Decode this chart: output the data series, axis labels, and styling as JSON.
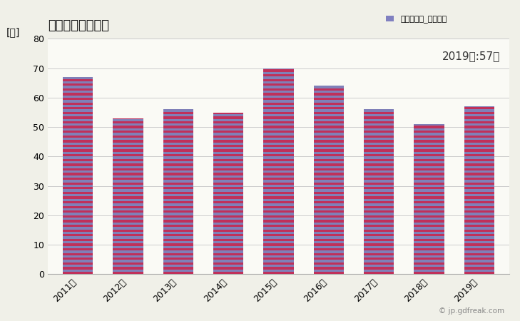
{
  "title": "建築物総数の推移",
  "ylabel": "[棟]",
  "legend_label": "全建築物計_建築物数",
  "annotation": "2019年:57棟",
  "categories": [
    "2011年",
    "2012年",
    "2013年",
    "2014年",
    "2015年",
    "2016年",
    "2017年",
    "2018年",
    "2019年"
  ],
  "values": [
    67,
    53,
    56,
    55,
    70,
    64,
    56,
    51,
    57
  ],
  "bar_color_main": "#c0305a",
  "bar_color_stripe": "#8080c0",
  "ylim": [
    0,
    80
  ],
  "yticks": [
    0,
    10,
    20,
    30,
    40,
    50,
    60,
    70,
    80
  ],
  "bg_color": "#f0f0e8",
  "plot_bg_color": "#fafaf5",
  "title_fontsize": 13,
  "label_fontsize": 10,
  "tick_fontsize": 9,
  "annotation_fontsize": 11,
  "legend_fontsize": 8,
  "copyright": "© jp.gdfreak.com",
  "stripe_color1": "#c0305a",
  "stripe_color2": "#8080b8"
}
